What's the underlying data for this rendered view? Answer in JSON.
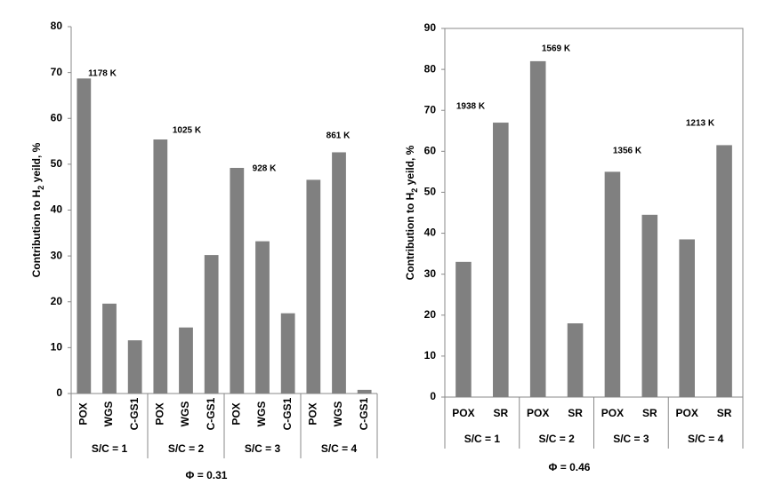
{
  "chart_data": [
    {
      "type": "bar",
      "y_label": [
        "Contribution to H",
        "2",
        " yeild, %"
      ],
      "x_label": "Φ = 0.31",
      "categories": [
        "POX",
        "WGS",
        "C-GS1",
        "POX",
        "WGS",
        "C-GS1",
        "POX",
        "WGS",
        "C-GS1",
        "POX",
        "WGS",
        "C-GS1"
      ],
      "groups": [
        "S/C = 1",
        "S/C = 2",
        "S/C = 3",
        "S/C = 4"
      ],
      "values": [
        68.7,
        19.6,
        11.6,
        55.4,
        14.4,
        30.2,
        49.2,
        33.2,
        17.5,
        46.6,
        52.6,
        0.8
      ],
      "annotations": [
        "1178 K",
        "1025 K",
        "928 K",
        "861 K"
      ],
      "color": "#808080",
      "ylim": [
        0,
        80
      ],
      "yticks": [
        0,
        10,
        20,
        30,
        40,
        50,
        60,
        70,
        80
      ]
    },
    {
      "type": "bar",
      "y_label": [
        "Contribution to H",
        "2",
        " yeild, %"
      ],
      "x_label": "Φ = 0.46",
      "categories": [
        "POX",
        "SR",
        "POX",
        "SR",
        "POX",
        "SR",
        "POX",
        "SR"
      ],
      "groups": [
        "S/C = 1",
        "S/C = 2",
        "S/C = 3",
        "S/C = 4"
      ],
      "values": [
        33,
        67,
        82,
        18,
        55,
        44.5,
        38.5,
        61.5
      ],
      "annotations": [
        "1938 K",
        "1569 K",
        "1356 K",
        "1213 K"
      ],
      "color": "#808080",
      "ylim": [
        0,
        90
      ],
      "yticks": [
        0,
        10,
        20,
        30,
        40,
        50,
        60,
        70,
        80,
        90
      ]
    }
  ]
}
